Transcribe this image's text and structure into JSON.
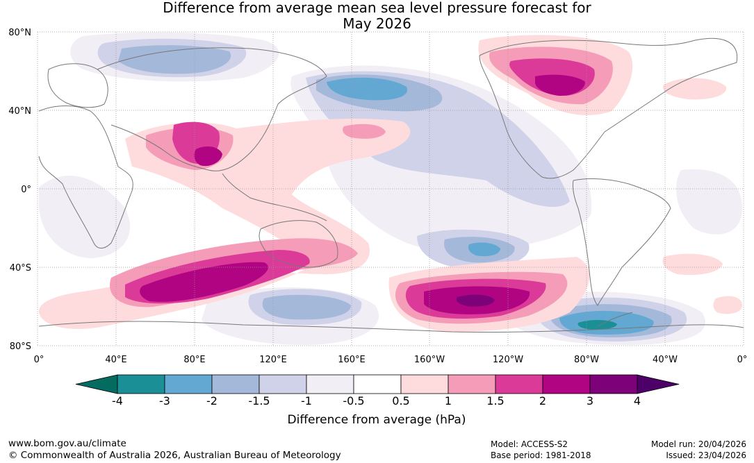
{
  "title": {
    "line1": "Difference from average mean sea level pressure forecast for",
    "line2": "May 2026"
  },
  "axes": {
    "lat_labels": [
      "80°N",
      "40°N",
      "0°",
      "40°S",
      "80°S"
    ],
    "lon_labels": [
      "0°",
      "40°E",
      "80°E",
      "120°E",
      "160°E",
      "160°W",
      "120°W",
      "80°W",
      "40°W",
      "0°"
    ]
  },
  "colorbar": {
    "labels": [
      "-4",
      "-3",
      "-2",
      "-1.5",
      "-1",
      "-0.5",
      "0.5",
      "1",
      "1.5",
      "2",
      "3",
      "4"
    ],
    "title": "Difference from average (hPa)",
    "colors": {
      "below_min": "#036b5f",
      "bins": [
        "#1a8f95",
        "#63a8d3",
        "#a4b8da",
        "#cfd2e8",
        "#f2eef5",
        "#ffffff",
        "#fedbdc",
        "#f59db8",
        "#dc3a98",
        "#b10483",
        "#7d0179"
      ],
      "above_max": "#4e0069"
    }
  },
  "footer": {
    "site": "www.bom.gov.au/climate",
    "copyright": "© Commonwealth of Australia 2026, Australian Bureau of Meteorology",
    "model": "Model: ACCESS-S2",
    "base_period": "Base period: 1981-2018",
    "model_run": "Model run: 20/04/2026",
    "issued": "Issued: 23/04/2026"
  }
}
